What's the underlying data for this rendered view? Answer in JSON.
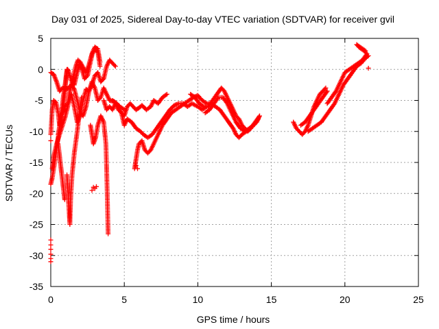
{
  "chart_data": {
    "type": "scatter",
    "title": "Day 031 of 2025, Sidereal Day-to-day VTEC variation (SDTVAR) for receiver gvil",
    "xlabel": "GPS time / hours",
    "ylabel": "SDTVAR / TECUs",
    "xlim": [
      0,
      25
    ],
    "ylim": [
      -35,
      5
    ],
    "xticks": [
      0,
      5,
      10,
      15,
      20,
      25
    ],
    "yticks": [
      -35,
      -30,
      -25,
      -20,
      -15,
      -10,
      -5,
      0,
      5
    ],
    "grid": true,
    "marker": "+",
    "color": "#ff0000",
    "tracks": [
      [
        [
          0.0,
          -10.5
        ],
        [
          0.1,
          -6.5
        ],
        [
          0.2,
          -5.0
        ],
        [
          0.35,
          -5.3
        ],
        [
          0.5,
          -7.0
        ],
        [
          0.6,
          -9.0
        ],
        [
          0.75,
          -7.5
        ],
        [
          0.9,
          -6.5
        ],
        [
          1.0,
          -5.8
        ],
        [
          1.15,
          -5.5
        ],
        [
          1.3,
          -3.5
        ],
        [
          1.5,
          -1.5
        ],
        [
          1.7,
          0.5
        ],
        [
          1.85,
          1.5
        ],
        [
          2.0,
          1.2
        ],
        [
          2.2,
          0.3
        ],
        [
          2.4,
          -0.5
        ],
        [
          2.6,
          0.8
        ],
        [
          2.8,
          2.5
        ],
        [
          3.0,
          3.2
        ],
        [
          3.2,
          2.8
        ],
        [
          3.35,
          0.5
        ]
      ],
      [
        [
          0.0,
          -18.5
        ],
        [
          0.1,
          -17.5
        ],
        [
          0.3,
          -14.5
        ],
        [
          0.5,
          -11.0
        ],
        [
          0.7,
          -7.5
        ],
        [
          0.85,
          -4.5
        ],
        [
          1.0,
          -2.0
        ],
        [
          1.1,
          0.0
        ],
        [
          1.2,
          -0.2
        ],
        [
          1.4,
          -1.8
        ],
        [
          1.6,
          -2.5
        ],
        [
          1.75,
          -1.0
        ],
        [
          1.95,
          0.8
        ],
        [
          2.1,
          0.2
        ],
        [
          2.3,
          -1.5
        ],
        [
          2.5,
          -1.0
        ],
        [
          2.7,
          1.2
        ],
        [
          2.85,
          2.8
        ],
        [
          3.0,
          3.6
        ],
        [
          3.2,
          3.3
        ],
        [
          3.35,
          1.2
        ]
      ],
      [
        [
          0.0,
          -0.5
        ],
        [
          0.2,
          -0.8
        ],
        [
          0.4,
          -2.0
        ],
        [
          0.6,
          -3.5
        ],
        [
          0.8,
          -3.0
        ],
        [
          1.0,
          -3.2
        ],
        [
          1.2,
          -3.0
        ],
        [
          1.4,
          -2.5
        ],
        [
          1.6,
          -3.2
        ],
        [
          1.8,
          -5.0
        ],
        [
          2.0,
          -7.0
        ],
        [
          2.2,
          -7.5
        ],
        [
          2.4,
          -6.0
        ],
        [
          2.6,
          -3.5
        ],
        [
          2.8,
          -2.0
        ],
        [
          3.0,
          -3.0
        ],
        [
          3.2,
          -5.0
        ],
        [
          3.4,
          -4.5
        ],
        [
          3.6,
          -3.0
        ],
        [
          3.8,
          -4.0
        ],
        [
          4.0,
          -5.0
        ],
        [
          4.3,
          -5.2
        ],
        [
          4.6,
          -5.8
        ],
        [
          5.0,
          -6.5
        ]
      ],
      [
        [
          0.1,
          -16.0
        ],
        [
          0.2,
          -14.0
        ],
        [
          0.4,
          -12.0
        ],
        [
          0.6,
          -10.5
        ],
        [
          0.8,
          -9.0
        ],
        [
          1.0,
          -7.5
        ],
        [
          1.2,
          -5.5
        ],
        [
          1.4,
          -4.0
        ],
        [
          1.6,
          -6.0
        ],
        [
          1.8,
          -8.5
        ],
        [
          2.0,
          -7.5
        ],
        [
          2.2,
          -5.0
        ],
        [
          2.4,
          -3.2
        ],
        [
          2.6,
          -3.5
        ],
        [
          2.8,
          -2.5
        ],
        [
          3.0,
          -1.0
        ],
        [
          3.2,
          -0.5
        ],
        [
          3.4,
          -2.0
        ],
        [
          3.6,
          -1.5
        ],
        [
          3.8,
          0.5
        ],
        [
          4.0,
          1.5
        ],
        [
          4.2,
          1.0
        ],
        [
          4.4,
          0.5
        ]
      ],
      [
        [
          0.5,
          -12.0
        ],
        [
          0.6,
          -14.0
        ],
        [
          0.7,
          -16.0
        ],
        [
          0.8,
          -18.0
        ],
        [
          0.9,
          -20.0
        ],
        [
          0.95,
          -21.0
        ]
      ],
      [
        [
          0.5,
          -10.5
        ],
        [
          0.7,
          -8.0
        ],
        [
          0.9,
          -5.0
        ],
        [
          1.0,
          -2.5
        ],
        [
          1.1,
          -0.5
        ],
        [
          1.15,
          0.0
        ]
      ],
      [
        [
          1.1,
          -17.0
        ],
        [
          1.15,
          -19.0
        ],
        [
          1.2,
          -21.0
        ],
        [
          1.25,
          -23.0
        ],
        [
          1.3,
          -25.0
        ],
        [
          1.35,
          -21.0
        ],
        [
          1.45,
          -17.0
        ],
        [
          1.6,
          -13.5
        ],
        [
          1.8,
          -10.0
        ],
        [
          1.95,
          -7.0
        ],
        [
          2.1,
          -4.5
        ]
      ],
      [
        [
          2.7,
          -9.0
        ],
        [
          2.8,
          -10.5
        ],
        [
          2.9,
          -12.0
        ],
        [
          3.05,
          -11.0
        ],
        [
          3.2,
          -9.0
        ],
        [
          3.4,
          -7.5
        ],
        [
          3.6,
          -8.5
        ],
        [
          3.75,
          -12.0
        ],
        [
          3.8,
          -16.0
        ],
        [
          3.85,
          -21.0
        ],
        [
          3.9,
          -26.5
        ]
      ],
      [
        [
          3.6,
          -5.0
        ],
        [
          3.8,
          -6.5
        ],
        [
          4.0,
          -6.0
        ],
        [
          4.2,
          -6.5
        ],
        [
          4.4,
          -5.5
        ],
        [
          4.6,
          -6.5
        ],
        [
          4.8,
          -7.0
        ],
        [
          5.0,
          -7.5
        ],
        [
          5.2,
          -6.0
        ],
        [
          5.4,
          -5.5
        ],
        [
          5.6,
          -6.0
        ],
        [
          5.8,
          -6.5
        ],
        [
          6.0,
          -6.2
        ],
        [
          6.2,
          -5.8
        ],
        [
          6.5,
          -6.5
        ],
        [
          6.8,
          -6.0
        ],
        [
          7.0,
          -5.0
        ],
        [
          7.3,
          -5.5
        ],
        [
          7.6,
          -4.5
        ],
        [
          7.9,
          -4.0
        ]
      ],
      [
        [
          4.2,
          -5.0
        ],
        [
          4.5,
          -5.5
        ],
        [
          4.8,
          -7.0
        ],
        [
          5.0,
          -9.0
        ],
        [
          5.2,
          -8.0
        ],
        [
          5.5,
          -8.5
        ],
        [
          5.8,
          -9.5
        ],
        [
          6.1,
          -10.0
        ],
        [
          6.3,
          -10.5
        ],
        [
          6.6,
          -11.0
        ],
        [
          6.9,
          -10.5
        ],
        [
          7.2,
          -9.5
        ],
        [
          7.5,
          -8.5
        ],
        [
          7.8,
          -7.5
        ],
        [
          8.1,
          -6.5
        ],
        [
          8.4,
          -5.8
        ],
        [
          8.7,
          -5.5
        ],
        [
          9.0,
          -5.5
        ],
        [
          9.3,
          -6.0
        ],
        [
          9.6,
          -5.5
        ],
        [
          10.0,
          -6.0
        ],
        [
          10.3,
          -6.5
        ],
        [
          10.6,
          -6.0
        ]
      ],
      [
        [
          5.7,
          -16.0
        ],
        [
          5.8,
          -14.5
        ],
        [
          5.9,
          -13.0
        ],
        [
          6.0,
          -12.0
        ],
        [
          6.2,
          -11.5
        ],
        [
          6.4,
          -13.0
        ],
        [
          6.6,
          -13.5
        ],
        [
          6.8,
          -13.0
        ],
        [
          7.0,
          -12.0
        ],
        [
          7.3,
          -10.5
        ],
        [
          7.6,
          -9.0
        ],
        [
          7.9,
          -8.0
        ],
        [
          8.2,
          -7.0
        ],
        [
          8.5,
          -6.5
        ],
        [
          8.8,
          -6.0
        ],
        [
          9.1,
          -5.5
        ],
        [
          9.4,
          -5.0
        ],
        [
          9.7,
          -4.5
        ],
        [
          10.0,
          -4.2
        ],
        [
          10.3,
          -5.0
        ],
        [
          10.6,
          -5.5
        ],
        [
          10.9,
          -5.5
        ],
        [
          11.2,
          -6.0
        ],
        [
          11.5,
          -6.5
        ],
        [
          11.8,
          -7.5
        ],
        [
          12.1,
          -8.5
        ],
        [
          12.4,
          -9.5
        ],
        [
          12.6,
          -10.5
        ],
        [
          12.8,
          -11.0
        ],
        [
          13.0,
          -10.5
        ],
        [
          13.3,
          -10.0
        ],
        [
          13.6,
          -9.5
        ],
        [
          13.9,
          -8.5
        ],
        [
          14.2,
          -7.5
        ]
      ],
      [
        [
          9.5,
          -4.0
        ],
        [
          9.8,
          -4.5
        ],
        [
          10.1,
          -5.5
        ],
        [
          10.4,
          -6.0
        ],
        [
          10.7,
          -6.0
        ],
        [
          11.0,
          -5.0
        ],
        [
          11.3,
          -4.0
        ],
        [
          11.6,
          -3.0
        ],
        [
          11.8,
          -3.5
        ],
        [
          12.0,
          -4.5
        ],
        [
          12.2,
          -5.5
        ],
        [
          12.4,
          -6.5
        ],
        [
          12.6,
          -7.5
        ],
        [
          12.8,
          -8.0
        ],
        [
          13.0,
          -9.0
        ],
        [
          13.2,
          -9.5
        ],
        [
          13.4,
          -10.0
        ],
        [
          13.6,
          -9.5
        ],
        [
          13.8,
          -9.0
        ],
        [
          14.0,
          -8.5
        ],
        [
          14.2,
          -7.5
        ]
      ],
      [
        [
          10.5,
          -7.0
        ],
        [
          10.8,
          -6.5
        ],
        [
          11.1,
          -5.5
        ],
        [
          11.4,
          -4.5
        ],
        [
          11.7,
          -4.5
        ],
        [
          12.0,
          -5.5
        ],
        [
          12.3,
          -7.0
        ],
        [
          12.6,
          -8.5
        ],
        [
          12.9,
          -9.5
        ],
        [
          13.2,
          -10.0
        ],
        [
          13.5,
          -9.5
        ],
        [
          13.8,
          -9.0
        ],
        [
          14.1,
          -8.0
        ]
      ],
      [
        [
          16.5,
          -8.5
        ],
        [
          16.7,
          -9.5
        ],
        [
          16.9,
          -10.0
        ],
        [
          17.1,
          -10.5
        ],
        [
          17.3,
          -10.0
        ],
        [
          17.5,
          -9.0
        ],
        [
          17.7,
          -7.5
        ],
        [
          17.9,
          -6.0
        ],
        [
          18.1,
          -5.0
        ],
        [
          18.3,
          -4.0
        ],
        [
          18.5,
          -3.5
        ],
        [
          18.7,
          -3.0
        ]
      ],
      [
        [
          17.0,
          -9.0
        ],
        [
          17.3,
          -8.5
        ],
        [
          17.6,
          -7.5
        ],
        [
          17.9,
          -6.5
        ],
        [
          18.2,
          -5.5
        ],
        [
          18.5,
          -4.5
        ],
        [
          18.8,
          -3.5
        ]
      ],
      [
        [
          17.5,
          -10.0
        ],
        [
          17.8,
          -9.5
        ],
        [
          18.1,
          -9.0
        ],
        [
          18.4,
          -8.5
        ],
        [
          18.7,
          -7.5
        ],
        [
          19.0,
          -6.5
        ],
        [
          19.3,
          -5.5
        ],
        [
          19.6,
          -4.0
        ],
        [
          19.9,
          -2.5
        ],
        [
          20.2,
          -1.5
        ],
        [
          20.5,
          -0.5
        ],
        [
          20.8,
          0.5
        ],
        [
          21.1,
          1.0
        ],
        [
          21.4,
          1.8
        ],
        [
          21.6,
          2.2
        ]
      ],
      [
        [
          18.8,
          -5.5
        ],
        [
          19.1,
          -4.5
        ],
        [
          19.4,
          -3.5
        ],
        [
          19.7,
          -2.0
        ],
        [
          20.0,
          -0.5
        ],
        [
          20.3,
          0.0
        ],
        [
          20.6,
          0.5
        ],
        [
          20.9,
          1.0
        ],
        [
          21.2,
          1.5
        ],
        [
          21.5,
          2.5
        ],
        [
          21.3,
          3.0
        ],
        [
          21.0,
          3.5
        ],
        [
          20.8,
          4.0
        ],
        [
          21.1,
          3.5
        ],
        [
          21.4,
          3.0
        ]
      ]
    ],
    "points": [
      [
        0.0,
        -27.5
      ],
      [
        0.0,
        -28.3
      ],
      [
        0.0,
        -29.0
      ],
      [
        0.0,
        -29.8
      ],
      [
        0.0,
        -30.5
      ],
      [
        0.0,
        -31.0
      ],
      [
        2.8,
        -19.5
      ],
      [
        2.9,
        -19.0
      ],
      [
        3.0,
        -19.2
      ],
      [
        3.1,
        -18.9
      ],
      [
        5.8,
        -15.5
      ],
      [
        5.9,
        -16.0
      ],
      [
        21.6,
        0.2
      ],
      [
        0.0,
        -11.5
      ]
    ]
  }
}
